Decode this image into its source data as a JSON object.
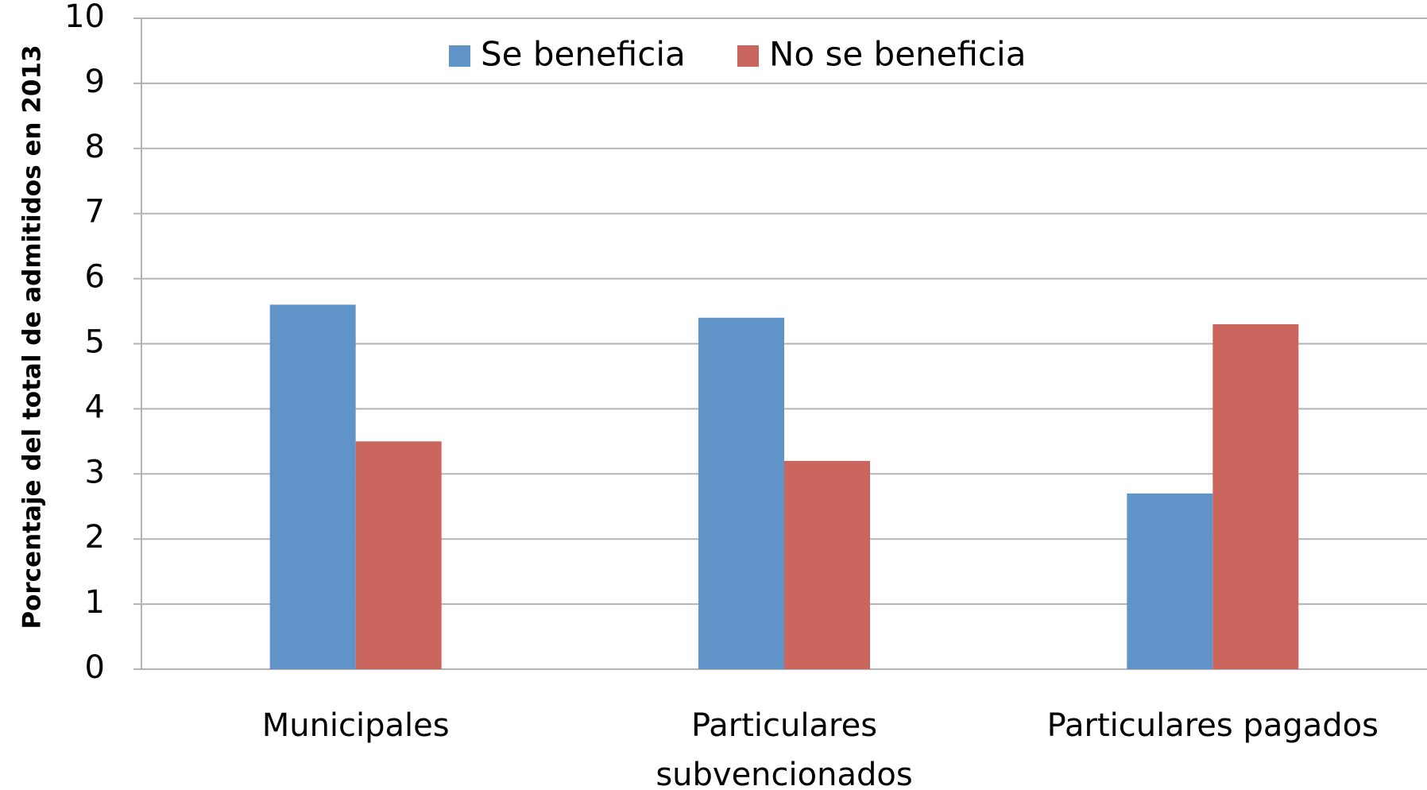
{
  "chart_data": {
    "type": "bar",
    "y_label": "Porcentaje del total de admitidos en 2013",
    "categories": [
      "Municipales",
      "Particulares subvencionados",
      "Particulares pagados"
    ],
    "series": [
      {
        "name": "Se beneficia",
        "color": "#6094c8",
        "values": [
          5.6,
          5.4,
          2.7
        ]
      },
      {
        "name": "No se beneficia",
        "color": "#cb665e",
        "values": [
          3.5,
          3.2,
          5.3
        ]
      }
    ],
    "ylim": [
      0,
      10
    ],
    "yticks": [
      0,
      1,
      2,
      3,
      4,
      5,
      6,
      7,
      8,
      9,
      10
    ],
    "grid": true,
    "legend": "top"
  }
}
